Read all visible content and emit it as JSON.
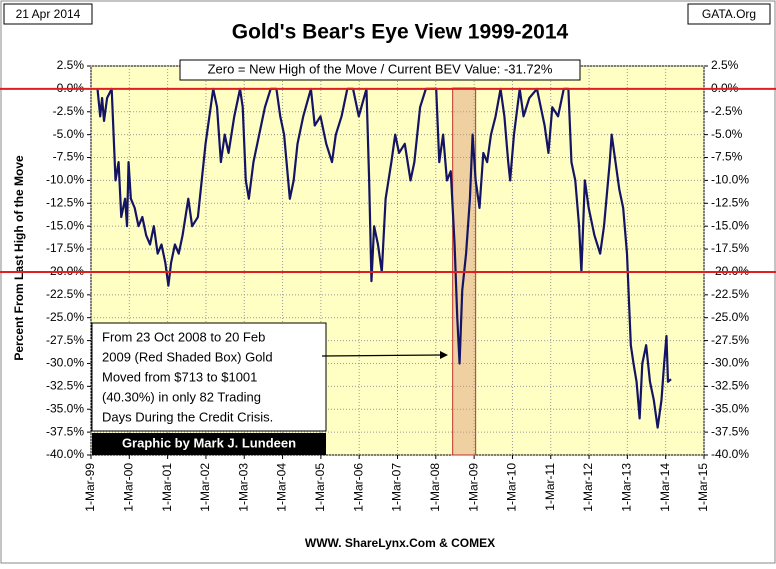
{
  "chart_data": {
    "type": "line",
    "title": "Gold's Bear's Eye View 1999-2014",
    "date_label": "21 Apr 2014",
    "source_label": "GATA.Org",
    "annotation": "Zero = New High of the Move / Current BEV Value:  -31.72%",
    "ylabel": "Percent  From Last High of the Move",
    "xlabel": "WWW. ShareLynx.Com & COMEX",
    "credit": "Graphic by Mark J. Lundeen",
    "note_lines": [
      "From  23 Oct 2008 to 20 Feb",
      "2009 (Red Shaded Box)  Gold",
      "Moved from $713 to $1001",
      "(40.30%) in only 82 Trading",
      "Days During the Credit Crisis."
    ],
    "color": "#141464",
    "x": [
      1999.33,
      1999.4,
      1999.45,
      1999.5,
      1999.58,
      1999.7,
      1999.75,
      1999.8,
      1999.88,
      1999.95,
      2000.05,
      2000.1,
      2000.14,
      2000.2,
      2000.3,
      2000.4,
      2000.5,
      2000.6,
      2000.7,
      2000.8,
      2000.9,
      2001.0,
      2001.1,
      2001.18,
      2001.25,
      2001.35,
      2001.45,
      2001.55,
      2001.7,
      2001.8,
      2001.95,
      2002.05,
      2002.15,
      2002.25,
      2002.35,
      2002.45,
      2002.55,
      2002.65,
      2002.75,
      2002.9,
      2003.05,
      2003.12,
      2003.2,
      2003.28,
      2003.4,
      2003.5,
      2003.6,
      2003.7,
      2003.85,
      2004.0,
      2004.1,
      2004.2,
      2004.35,
      2004.45,
      2004.55,
      2004.7,
      2004.9,
      2005.0,
      2005.15,
      2005.3,
      2005.45,
      2005.55,
      2005.7,
      2005.85,
      2006.0,
      2006.15,
      2006.35,
      2006.42,
      2006.48,
      2006.55,
      2006.65,
      2006.75,
      2006.85,
      2007.0,
      2007.1,
      2007.2,
      2007.35,
      2007.5,
      2007.6,
      2007.75,
      2007.9,
      2008.05,
      2008.17,
      2008.25,
      2008.35,
      2008.45,
      2008.55,
      2008.65,
      2008.72,
      2008.78,
      2008.85,
      2008.95,
      2009.05,
      2009.12,
      2009.2,
      2009.3,
      2009.4,
      2009.5,
      2009.6,
      2009.72,
      2009.85,
      2009.95,
      2010.05,
      2010.1,
      2010.2,
      2010.35,
      2010.45,
      2010.6,
      2010.8,
      2011.0,
      2011.1,
      2011.2,
      2011.35,
      2011.5,
      2011.62,
      2011.7,
      2011.8,
      2011.9,
      2011.96,
      2012.05,
      2012.15,
      2012.3,
      2012.45,
      2012.55,
      2012.7,
      2012.75,
      2012.85,
      2012.95,
      2013.05,
      2013.15,
      2013.25,
      2013.32,
      2013.4,
      2013.48,
      2013.55,
      2013.65,
      2013.75,
      2013.85,
      2013.95,
      2014.05,
      2014.12,
      2014.18,
      2014.22,
      2014.3
    ],
    "values": [
      0,
      -3,
      -1,
      -3.5,
      -1,
      0,
      -5,
      -10,
      -8,
      -14,
      -12,
      -15,
      -8,
      -12,
      -13,
      -15,
      -14,
      -16,
      -17,
      -15,
      -18,
      -17,
      -19,
      -21.5,
      -19,
      -17,
      -18,
      -16,
      -12,
      -15,
      -14,
      -10,
      -6,
      -3,
      0,
      -2,
      -8,
      -5,
      -7,
      -3,
      0,
      -2,
      -10,
      -12,
      -8,
      -6,
      -4,
      -2,
      0,
      0,
      -3,
      -5,
      -12,
      -10,
      -6,
      -3,
      0,
      -4,
      -3,
      -6,
      -8,
      -5,
      -3,
      0,
      0,
      -3,
      0,
      -10,
      -21,
      -15,
      -17,
      -20,
      -12,
      -8,
      -5,
      -7,
      -6,
      -10,
      -8,
      -2,
      0,
      0,
      0,
      -8,
      -5,
      -10,
      -9,
      -17,
      -25,
      -30,
      -22,
      -18,
      -12,
      -5,
      -10,
      -13,
      -7,
      -8,
      -5,
      -3,
      0,
      -3,
      -8,
      -10,
      -5,
      0,
      -3,
      -1,
      0,
      -4,
      -7,
      -2,
      -3,
      0,
      0,
      -8,
      -10,
      -15,
      -20,
      -10,
      -13,
      -16,
      -18,
      -15,
      -8,
      -5,
      -8,
      -11,
      -13,
      -18,
      -28,
      -30,
      -32,
      -36,
      -30,
      -28,
      -32,
      -34,
      -37,
      -34,
      -30,
      -27,
      -32,
      -31.72
    ],
    "xlim": [
      1999.16,
      2015.16
    ],
    "xticks": [
      {
        "value": 1999.16,
        "label": "1-Mar-99"
      },
      {
        "value": 2000.16,
        "label": "1-Mar-00"
      },
      {
        "value": 2001.16,
        "label": "1-Mar-01"
      },
      {
        "value": 2002.16,
        "label": "1-Mar-02"
      },
      {
        "value": 2003.16,
        "label": "1-Mar-03"
      },
      {
        "value": 2004.16,
        "label": "1-Mar-04"
      },
      {
        "value": 2005.16,
        "label": "1-Mar-05"
      },
      {
        "value": 2006.16,
        "label": "1-Mar-06"
      },
      {
        "value": 2007.16,
        "label": "1-Mar-07"
      },
      {
        "value": 2008.16,
        "label": "1-Mar-08"
      },
      {
        "value": 2009.16,
        "label": "1-Mar-09"
      },
      {
        "value": 2010.16,
        "label": "1-Mar-10"
      },
      {
        "value": 2011.16,
        "label": "1-Mar-11"
      },
      {
        "value": 2012.16,
        "label": "1-Mar-12"
      },
      {
        "value": 2013.16,
        "label": "1-Mar-13"
      },
      {
        "value": 2014.16,
        "label": "1-Mar-14"
      },
      {
        "value": 2015.16,
        "label": "1-Mar-15"
      }
    ],
    "ylim": [
      -40,
      2.5
    ],
    "yticks": [
      {
        "value": 2.5,
        "label": "2.5%"
      },
      {
        "value": 0,
        "label": "0.0%"
      },
      {
        "value": -2.5,
        "label": "-2.5%"
      },
      {
        "value": -5,
        "label": "-5.0%"
      },
      {
        "value": -7.5,
        "label": "-7.5%"
      },
      {
        "value": -10,
        "label": "-10.0%"
      },
      {
        "value": -12.5,
        "label": "-12.5%"
      },
      {
        "value": -15,
        "label": "-15.0%"
      },
      {
        "value": -17.5,
        "label": "-17.5%"
      },
      {
        "value": -20,
        "label": "-20.0%"
      },
      {
        "value": -22.5,
        "label": "-22.5%"
      },
      {
        "value": -25,
        "label": "-25.0%"
      },
      {
        "value": -27.5,
        "label": "-27.5%"
      },
      {
        "value": -30,
        "label": "-30.0%"
      },
      {
        "value": -32.5,
        "label": "-32.5%"
      },
      {
        "value": -35,
        "label": "-35.0%"
      },
      {
        "value": -37.5,
        "label": "-37.5%"
      },
      {
        "value": -40,
        "label": "-40.0%"
      }
    ],
    "hlines": [
      0,
      -20
    ],
    "hline_color": "#e02020",
    "shaded_xrange": [
      2008.6,
      2009.2
    ],
    "grid": true
  }
}
